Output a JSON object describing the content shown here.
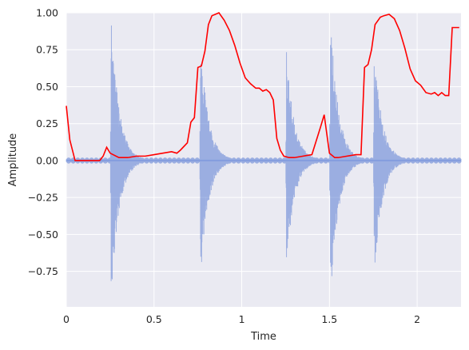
{
  "chart_data": {
    "type": "line",
    "title": "",
    "xlabel": "Time",
    "ylabel": "Amplitude",
    "xlim": [
      0,
      2.25
    ],
    "ylim": [
      -0.99,
      1.0
    ],
    "x_ticks": [
      0,
      0.5,
      1,
      1.5,
      2
    ],
    "x_tick_labels": [
      "0",
      "0.5",
      "1",
      "1.5",
      "2"
    ],
    "y_ticks": [
      -0.75,
      -0.5,
      -0.25,
      0.0,
      0.25,
      0.5,
      0.75,
      1.0
    ],
    "y_tick_labels": [
      "−0.75",
      "−0.50",
      "−0.25",
      "0.00",
      "0.25",
      "0.50",
      "0.75",
      "1.00"
    ],
    "grid": true,
    "background": "#eaeaf2",
    "waveform": {
      "color": "#4c72d0",
      "opacity": 0.5,
      "onsets": [
        0.255,
        0.765,
        1.255,
        1.505,
        1.755
      ],
      "peak_pos": [
        1.0,
        0.82,
        0.74,
        1.0,
        0.78
      ],
      "peak_neg": [
        -0.97,
        -0.81,
        -0.74,
        -0.99,
        -0.8
      ]
    },
    "envelope": {
      "color": "#ff0000",
      "x": [
        0.0,
        0.02,
        0.05,
        0.1,
        0.15,
        0.19,
        0.21,
        0.23,
        0.25,
        0.3,
        0.35,
        0.4,
        0.45,
        0.5,
        0.55,
        0.6,
        0.63,
        0.65,
        0.69,
        0.71,
        0.73,
        0.75,
        0.77,
        0.79,
        0.81,
        0.83,
        0.85,
        0.87,
        0.9,
        0.93,
        0.96,
        0.99,
        1.02,
        1.05,
        1.08,
        1.1,
        1.12,
        1.14,
        1.16,
        1.18,
        1.2,
        1.22,
        1.24,
        1.27,
        1.3,
        1.35,
        1.4,
        1.45,
        1.47,
        1.5,
        1.53,
        1.55,
        1.6,
        1.65,
        1.68,
        1.7,
        1.72,
        1.74,
        1.76,
        1.79,
        1.81,
        1.84,
        1.87,
        1.9,
        1.93,
        1.96,
        1.99,
        2.02,
        2.05,
        2.08,
        2.1,
        2.12,
        2.14,
        2.16,
        2.18,
        2.2,
        2.22,
        2.24
      ],
      "y": [
        0.37,
        0.14,
        0.0,
        0.0,
        0.0,
        0.0,
        0.03,
        0.09,
        0.05,
        0.02,
        0.02,
        0.03,
        0.03,
        0.04,
        0.05,
        0.06,
        0.05,
        0.07,
        0.12,
        0.26,
        0.29,
        0.63,
        0.64,
        0.74,
        0.92,
        0.98,
        0.99,
        1.0,
        0.95,
        0.88,
        0.78,
        0.66,
        0.56,
        0.52,
        0.49,
        0.49,
        0.47,
        0.48,
        0.46,
        0.41,
        0.15,
        0.07,
        0.03,
        0.02,
        0.02,
        0.03,
        0.04,
        0.23,
        0.31,
        0.05,
        0.02,
        0.02,
        0.03,
        0.04,
        0.04,
        0.63,
        0.65,
        0.75,
        0.92,
        0.97,
        0.98,
        0.99,
        0.96,
        0.88,
        0.76,
        0.62,
        0.54,
        0.51,
        0.46,
        0.45,
        0.46,
        0.44,
        0.46,
        0.44,
        0.44,
        0.9,
        0.9,
        0.9
      ]
    }
  }
}
